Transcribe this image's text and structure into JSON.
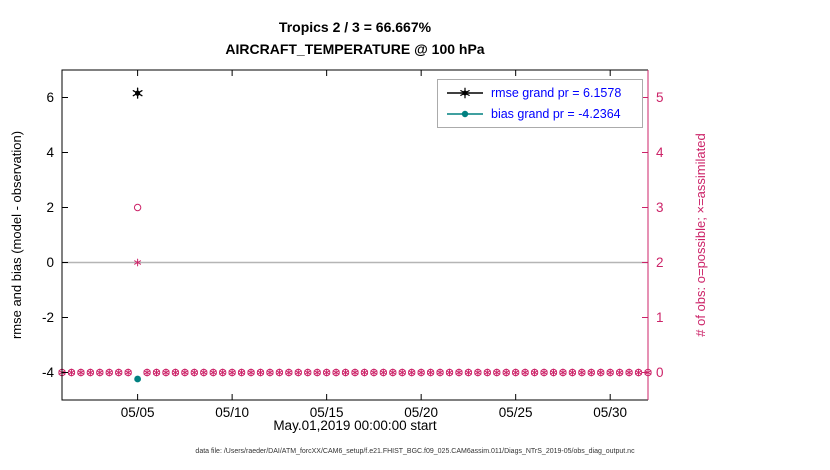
{
  "chart_data": {
    "type": "line",
    "title": "Tropics 2 / 3 = 66.667%",
    "subtitle": "AIRCRAFT_TEMPERATURE @ 100 hPa",
    "xlabel": "May.01,2019 00:00:00 start",
    "ylabel_left": "rmse and bias (model - observation)",
    "ylabel_right": "# of obs: o=possible; ×=assimilated",
    "x_tick_labels": [
      "05/05",
      "05/10",
      "05/15",
      "05/20",
      "05/25",
      "05/30"
    ],
    "x_tick_days": [
      5,
      10,
      15,
      20,
      25,
      30
    ],
    "xlim_days": [
      1,
      32
    ],
    "ylim_left": [
      -5,
      7
    ],
    "yticks_left": [
      -4,
      -2,
      0,
      2,
      4,
      6
    ],
    "ylim_right": [
      -0.5,
      5.5
    ],
    "yticks_right": [
      0,
      1,
      2,
      3,
      4,
      5
    ],
    "grid": "off",
    "zero_line": {
      "y": 0,
      "color": "#b5b5b5"
    },
    "series": [
      {
        "name": "rmse",
        "color": "#000000",
        "marker": "asterisk-dot",
        "grand_value": 6.1578,
        "points": [
          {
            "day": 5,
            "value": 6.1578
          }
        ]
      },
      {
        "name": "bias",
        "color": "#008080",
        "marker": "dot",
        "grand_value": -4.2364,
        "points": [
          {
            "day": 5,
            "value": -4.2364
          }
        ]
      }
    ],
    "obs_counts": {
      "color": "#cc2368",
      "marker_possible": "circle",
      "marker_assimilated": "asterisk",
      "times": {
        "start_day": 1,
        "end_day": 32,
        "step_days": 0.5
      },
      "default_possible": 0,
      "default_assimilated": 0,
      "special": [
        {
          "day": 5,
          "possible": 3,
          "assimilated": 2
        }
      ]
    },
    "legend": [
      {
        "label": "rmse grand pr = 6.1578",
        "color": "#000000",
        "marker": "asterisk-dot"
      },
      {
        "label": "bias grand pr = -4.2364",
        "color": "#008080",
        "marker": "dot"
      }
    ],
    "legend_text_color": "#0000ff",
    "legend_position": "top-right"
  },
  "footer": {
    "text": "data file: /Users/raeder/DAI/ATM_forcXX/CAM6_setup/f.e21.FHIST_BGC.f09_025.CAM6assim.011/Diags_NTrS_2019-05/obs_diag_output.nc"
  }
}
